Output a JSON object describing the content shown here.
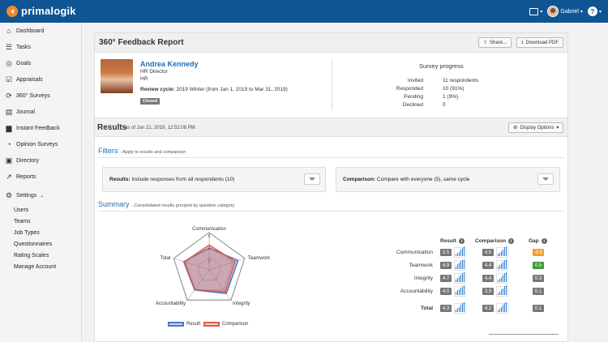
{
  "app": {
    "brand": "primalogik",
    "user_name": "Gabriel",
    "help_glyph": "?"
  },
  "sidebar": {
    "items": [
      {
        "label": "Dashboard",
        "icon": "home-icon"
      },
      {
        "label": "Tasks",
        "icon": "list-icon"
      },
      {
        "label": "Goals",
        "icon": "target-icon"
      },
      {
        "label": "Appraisals",
        "icon": "checkbox-icon"
      },
      {
        "label": "360° Surveys",
        "icon": "cycle-icon"
      },
      {
        "label": "Journal",
        "icon": "journal-icon"
      },
      {
        "label": "Instant Feedback",
        "icon": "chat-icon"
      },
      {
        "label": "Opinion Surveys",
        "icon": "speech-icon"
      },
      {
        "label": "Directory",
        "icon": "directory-icon"
      },
      {
        "label": "Reports",
        "icon": "trend-icon"
      }
    ],
    "settings_label": "Settings",
    "settings_items": [
      "Users",
      "Teams",
      "Job Types",
      "Questionnaires",
      "Rating Scales",
      "Manage Account"
    ]
  },
  "report": {
    "title": "360° Feedback Report",
    "share_label": "Share...",
    "download_label": "Download PDF"
  },
  "person": {
    "name": "Andrea Kennedy",
    "title": "HR Director",
    "department": "HR",
    "review_cycle_label": "Review cycle:",
    "review_cycle_value": "2019 Winter (from Jan 1, 2019 to Mar 31, 2019)",
    "status": "Closed"
  },
  "survey_progress": {
    "title": "Survey progress",
    "rows": [
      {
        "label": "Invited",
        "value": "11 respondents"
      },
      {
        "label": "Responded",
        "value": "10 (91%)"
      },
      {
        "label": "Pending",
        "value": "1 (9%)"
      },
      {
        "label": "Declined",
        "value": "0"
      }
    ]
  },
  "results": {
    "title": "Results",
    "as_of": "as of Jun 21, 2019, 12:52:08 PM",
    "display_options_label": "Display Options"
  },
  "filters": {
    "title": "Filters",
    "subtitle": "- Apply to results and comparison",
    "results_label": "Results:",
    "results_value": "Include responses from all respondents (10)",
    "comparison_label": "Comparison:",
    "comparison_value": "Compare with everyone (5), same cycle"
  },
  "summary": {
    "title": "Summary",
    "subtitle": "- Consolidated results grouped by question category"
  },
  "chart_data": {
    "type": "radar",
    "categories": [
      "Communication",
      "Teamwork",
      "Integrity",
      "Accountability",
      "Total"
    ],
    "series": [
      {
        "name": "Result",
        "values": [
          3.5,
          4.9,
          4.7,
          4.0,
          4.3
        ],
        "color": "#4a78c9"
      },
      {
        "name": "Comparison",
        "values": [
          4.0,
          4.4,
          4.4,
          3.9,
          4.2
        ],
        "color": "#e05a4a"
      }
    ],
    "r_max": 6,
    "tick_labels": [
      "6",
      "4",
      "2"
    ],
    "legend": "bottom"
  },
  "table": {
    "headers": {
      "result": "Result",
      "comparison": "Comparison",
      "gap": "Gap"
    },
    "info_glyph": "i",
    "rows": [
      {
        "category": "Communication",
        "result": "3.5",
        "comparison": "4.0",
        "gap": "-0.5",
        "gap_color": "#f0a030",
        "result_spark": [
          2,
          4,
          5,
          8,
          10,
          12
        ],
        "comparison_spark": [
          3,
          4,
          6,
          8,
          11,
          12
        ]
      },
      {
        "category": "Teamwork",
        "result": "4.9",
        "comparison": "4.4",
        "gap": "0.5",
        "gap_color": "#3d9a3d",
        "result_spark": [
          3,
          6,
          8,
          10,
          11,
          12
        ],
        "comparison_spark": [
          3,
          5,
          7,
          9,
          11,
          12
        ]
      },
      {
        "category": "Integrity",
        "result": "4.7",
        "comparison": "4.4",
        "gap": "0.3",
        "gap_color": "#777777",
        "result_spark": [
          3,
          5,
          7,
          9,
          11,
          12
        ],
        "comparison_spark": [
          2,
          4,
          6,
          9,
          11,
          12
        ]
      },
      {
        "category": "Accountability",
        "result": "4.0",
        "comparison": "3.9",
        "gap": "0.1",
        "gap_color": "#777777",
        "result_spark": [
          4,
          6,
          7,
          9,
          10,
          12
        ],
        "comparison_spark": [
          2,
          4,
          7,
          8,
          11,
          12
        ]
      }
    ],
    "total": {
      "category": "Total",
      "result": "4.3",
      "comparison": "4.2",
      "gap": "0.1",
      "gap_color": "#777777",
      "result_spark": [
        3,
        5,
        6,
        9,
        11,
        12
      ],
      "comparison_spark": [
        2,
        4,
        6,
        9,
        11,
        12
      ]
    }
  }
}
